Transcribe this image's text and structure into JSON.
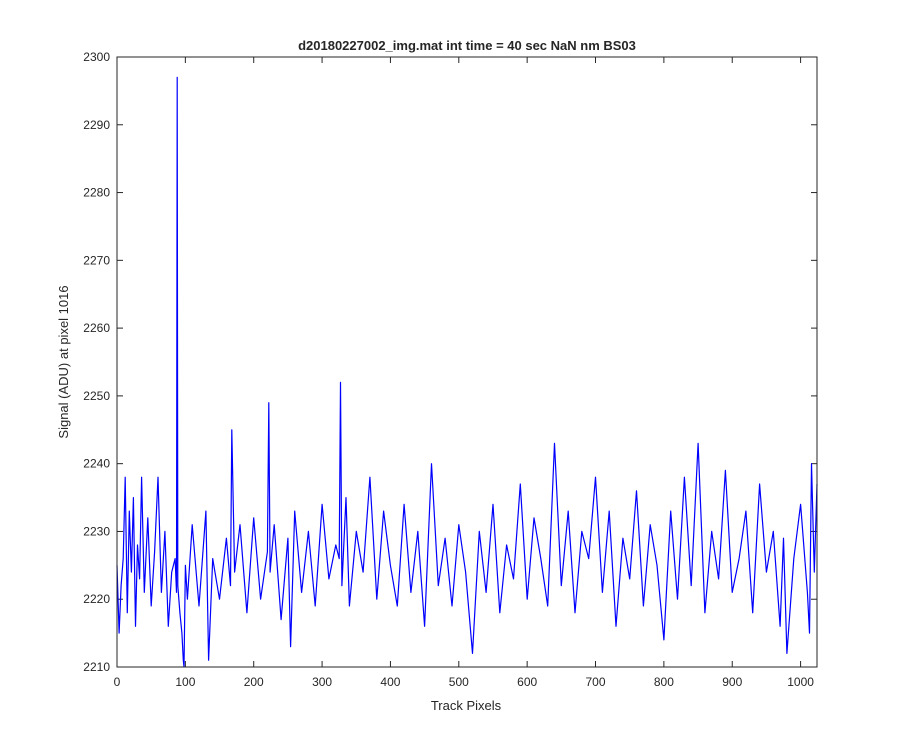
{
  "chart_data": {
    "type": "line",
    "title": "d20180227002_img.mat int time = 40 sec  NaN nm BS03",
    "xlabel": "Track Pixels",
    "ylabel": "Signal (ADU) at pixel 1016",
    "xlim": [
      0,
      1024
    ],
    "ylim": [
      2210,
      2300
    ],
    "xticks": [
      0,
      100,
      200,
      300,
      400,
      500,
      600,
      700,
      800,
      900,
      1000
    ],
    "yticks": [
      2210,
      2220,
      2230,
      2240,
      2250,
      2260,
      2270,
      2280,
      2290,
      2300
    ],
    "grid": false,
    "line_color": "#0000ff",
    "series": [
      {
        "x": [
          0,
          3,
          6,
          9,
          12,
          15,
          18,
          21,
          24,
          27,
          30,
          33,
          36,
          40,
          45,
          50,
          55,
          60,
          65,
          70,
          75,
          80,
          85,
          87,
          88,
          89,
          92,
          95,
          97,
          98,
          100,
          103,
          110,
          120,
          130,
          134,
          140,
          150,
          160,
          166,
          168,
          172,
          180,
          190,
          200,
          210,
          220,
          222,
          224,
          230,
          240,
          250,
          254,
          260,
          270,
          280,
          290,
          300,
          310,
          320,
          325,
          327,
          329,
          335,
          340,
          350,
          360,
          370,
          380,
          390,
          400,
          410,
          420,
          430,
          440,
          450,
          460,
          470,
          480,
          490,
          500,
          510,
          520,
          530,
          540,
          550,
          560,
          570,
          580,
          590,
          600,
          610,
          620,
          630,
          640,
          650,
          660,
          670,
          680,
          690,
          700,
          710,
          720,
          730,
          740,
          750,
          760,
          770,
          780,
          790,
          800,
          810,
          820,
          830,
          840,
          850,
          860,
          870,
          880,
          890,
          900,
          910,
          920,
          930,
          940,
          950,
          960,
          970,
          975,
          980,
          990,
          1000,
          1010,
          1013,
          1016,
          1020,
          1024
        ],
        "y": [
          2225,
          2215,
          2222,
          2226,
          2238,
          2218,
          2233,
          2224,
          2235,
          2216,
          2228,
          2223,
          2238,
          2221,
          2232,
          2219,
          2227,
          2238,
          2221,
          2230,
          2216,
          2224,
          2226,
          2221,
          2297,
          2222,
          2218,
          2215,
          2211,
          2210,
          2225,
          2220,
          2231,
          2219,
          2233,
          2211,
          2226,
          2220,
          2229,
          2222,
          2245,
          2224,
          2231,
          2218,
          2232,
          2220,
          2227,
          2249,
          2224,
          2231,
          2217,
          2229,
          2213,
          2233,
          2221,
          2230,
          2219,
          2234,
          2223,
          2228,
          2226,
          2252,
          2222,
          2235,
          2219,
          2230,
          2224,
          2238,
          2220,
          2233,
          2225,
          2219,
          2234,
          2221,
          2230,
          2216,
          2240,
          2222,
          2229,
          2219,
          2231,
          2224,
          2212,
          2230,
          2221,
          2234,
          2218,
          2228,
          2223,
          2237,
          2220,
          2232,
          2226,
          2219,
          2243,
          2222,
          2233,
          2218,
          2230,
          2226,
          2238,
          2221,
          2233,
          2216,
          2229,
          2223,
          2236,
          2219,
          2231,
          2225,
          2214,
          2233,
          2220,
          2238,
          2222,
          2243,
          2218,
          2230,
          2223,
          2239,
          2221,
          2226,
          2233,
          2218,
          2237,
          2224,
          2230,
          2216,
          2229,
          2212,
          2226,
          2234,
          2221,
          2215,
          2240,
          2224,
          2237
        ]
      }
    ]
  }
}
